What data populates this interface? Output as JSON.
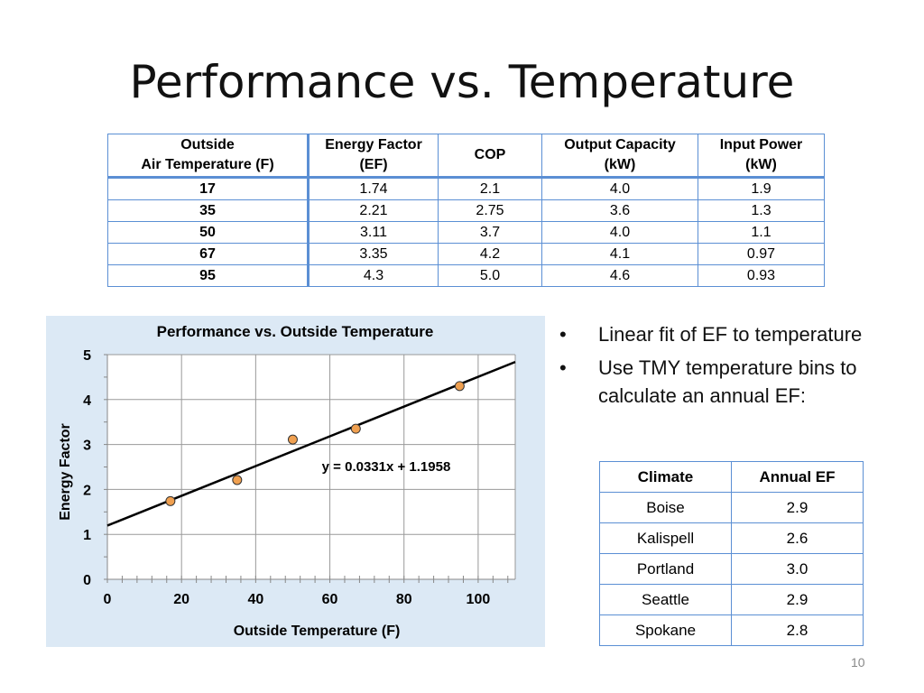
{
  "slide": {
    "title": "Performance vs. Temperature",
    "page_number": "10"
  },
  "perf_table": {
    "headers": [
      [
        "Outside",
        "Air Temperature (F)"
      ],
      [
        "Energy Factor",
        "(EF)"
      ],
      [
        "COP"
      ],
      [
        "Output Capacity",
        "(kW)"
      ],
      [
        "Input Power",
        "(kW)"
      ]
    ],
    "rows": [
      [
        "17",
        "1.74",
        "2.1",
        "4.0",
        "1.9"
      ],
      [
        "35",
        "2.21",
        "2.75",
        "3.6",
        "1.3"
      ],
      [
        "50",
        "3.11",
        "3.7",
        "4.0",
        "1.1"
      ],
      [
        "67",
        "3.35",
        "4.2",
        "4.1",
        "0.97"
      ],
      [
        "95",
        "4.3",
        "5.0",
        "4.6",
        "0.93"
      ]
    ]
  },
  "bullets": [
    "Linear fit of EF to temperature",
    "Use TMY temperature bins to calculate an annual EF:"
  ],
  "climate_table": {
    "headers": [
      "Climate",
      "Annual EF"
    ],
    "rows": [
      [
        "Boise",
        "2.9"
      ],
      [
        "Kalispell",
        "2.6"
      ],
      [
        "Portland",
        "3.0"
      ],
      [
        "Seattle",
        "2.9"
      ],
      [
        "Spokane",
        "2.8"
      ]
    ]
  },
  "chart_data": {
    "type": "scatter",
    "title": "Performance vs. Outside Temperature",
    "xlabel": "Outside Temperature (F)",
    "ylabel": "Energy Factor",
    "xlim": [
      0,
      110
    ],
    "ylim": [
      0,
      5
    ],
    "x_ticks": [
      0,
      20,
      40,
      60,
      80,
      100
    ],
    "y_ticks": [
      0,
      1,
      2,
      3,
      4,
      5
    ],
    "grid": true,
    "x": [
      17,
      35,
      50,
      67,
      95
    ],
    "y": [
      1.74,
      2.21,
      3.11,
      3.35,
      4.3
    ],
    "trendline": {
      "slope": 0.0331,
      "intercept": 1.1958
    },
    "annotation": "y = 0.0331x + 1.1958",
    "colors": {
      "background": "#dce9f5",
      "plot_area": "#ffffff",
      "point": "#f0a050",
      "trendline": "#000000"
    }
  }
}
